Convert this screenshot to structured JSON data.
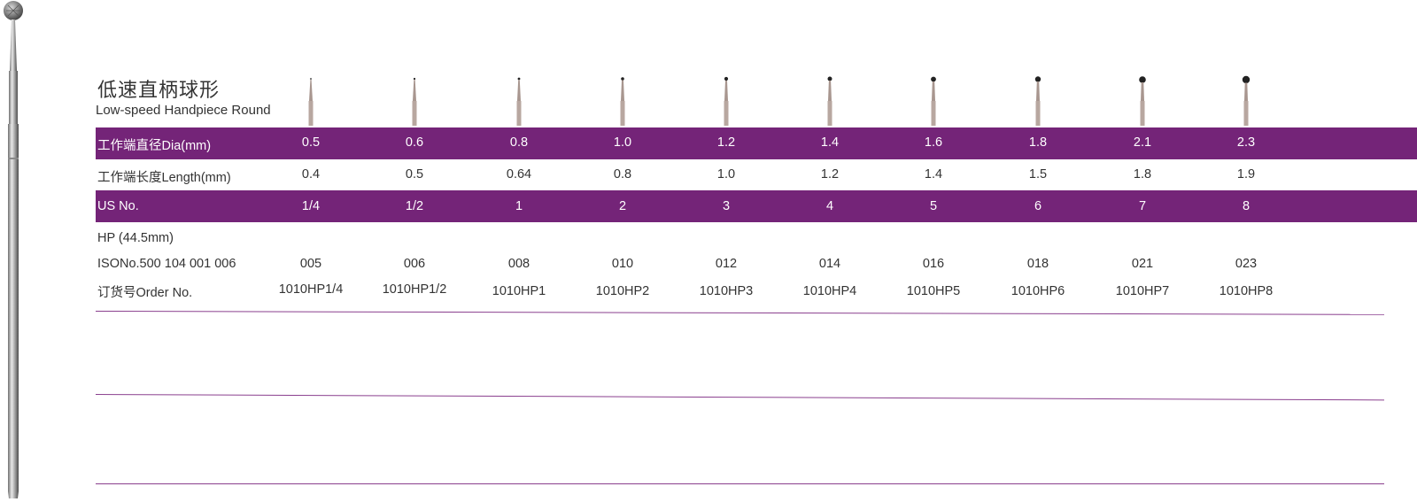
{
  "colors": {
    "band": "#742478",
    "band_text": "#ffffff",
    "rule": "#8a3f8e",
    "text": "#333333"
  },
  "title_cn": "低速直柄球形",
  "title_en": "Low-speed Handpiece  Round",
  "rows": {
    "dia": {
      "label": "工作端直径Dia(mm)",
      "values": [
        "0.5",
        "0.6",
        "0.8",
        "1.0",
        "1.2",
        "1.4",
        "1.6",
        "1.8",
        "2.1",
        "2.3"
      ]
    },
    "length": {
      "label": "工作端长度Length(mm)",
      "values": [
        "0.4",
        "0.5",
        "0.64",
        "0.8",
        "1.0",
        "1.2",
        "1.4",
        "1.5",
        "1.8",
        "1.9"
      ]
    },
    "us": {
      "label": "US No.",
      "values": [
        "1/4",
        "1/2",
        "1",
        "2",
        "3",
        "4",
        "5",
        "6",
        "7",
        "8"
      ]
    },
    "hp": {
      "label": "HP (44.5mm)"
    },
    "iso": {
      "label": "ISONo.500 104 001 006",
      "values": [
        "005",
        "006",
        "008",
        "010",
        "012",
        "014",
        "016",
        "018",
        "021",
        "023"
      ]
    },
    "order": {
      "label": "订货号Order No.",
      "values": [
        "1010HP1/4",
        "1010HP1/2",
        "1010HP1",
        "1010HP2",
        "1010HP3",
        "1010HP4",
        "1010HP5",
        "1010HP6",
        "1010HP7",
        "1010HP8"
      ]
    }
  },
  "product_icon": "round-bur-icon"
}
